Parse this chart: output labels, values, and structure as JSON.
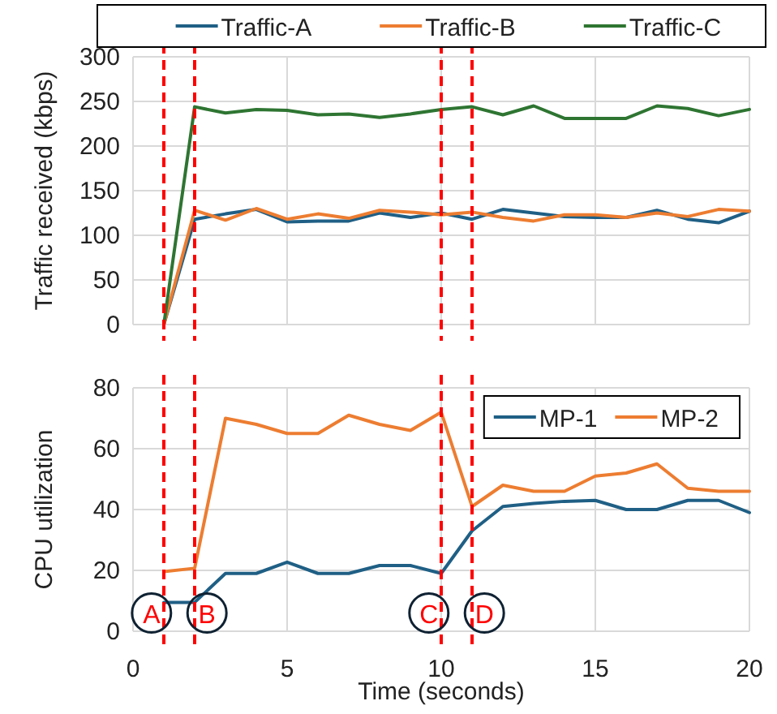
{
  "chart_data": [
    {
      "type": "line",
      "ylabel": "Traffic received (kbps)",
      "x": [
        1,
        2,
        3,
        4,
        5,
        6,
        7,
        8,
        9,
        10,
        11,
        12,
        13,
        14,
        15,
        16,
        17,
        18,
        19,
        20
      ],
      "xlim": [
        0,
        20
      ],
      "xticks": [
        0,
        5,
        10,
        15,
        20
      ],
      "ylim": [
        0,
        300
      ],
      "yticks": [
        0,
        50,
        100,
        150,
        200,
        250,
        300
      ],
      "grid": true,
      "legend": "top",
      "tick_labels": "y",
      "line_style": "solid",
      "marker": "none",
      "series": [
        {
          "name": "Traffic-A",
          "color": "#1f5f85",
          "values": [
            0,
            118,
            124,
            129,
            115,
            116,
            116,
            125,
            120,
            125,
            118,
            129,
            125,
            121,
            120,
            120,
            128,
            118,
            114,
            127
          ]
        },
        {
          "name": "Traffic-B",
          "color": "#ed7d31",
          "values": [
            0,
            128,
            117,
            130,
            118,
            124,
            119,
            128,
            126,
            123,
            126,
            120,
            116,
            123,
            123,
            120,
            125,
            121,
            129,
            127
          ]
        },
        {
          "name": "Traffic-C",
          "color": "#2e7532",
          "values": [
            0,
            244,
            237,
            241,
            240,
            235,
            236,
            232,
            236,
            241,
            244,
            235,
            245,
            231,
            231,
            231,
            245,
            242,
            234,
            241
          ]
        }
      ],
      "ref_lines": [
        {
          "axis": "x",
          "value": 1,
          "color": "#ff0000",
          "line_style": "dashed"
        },
        {
          "axis": "x",
          "value": 2,
          "color": "#ff0000",
          "line_style": "dashed"
        },
        {
          "axis": "x",
          "value": 10,
          "color": "#ff0000",
          "line_style": "dashed"
        },
        {
          "axis": "x",
          "value": 11,
          "color": "#ff0000",
          "line_style": "dashed"
        }
      ]
    },
    {
      "type": "line",
      "xlabel": "Time (seconds)",
      "ylabel": "CPU utilization",
      "x": [
        1,
        2,
        3,
        4,
        5,
        6,
        7,
        8,
        9,
        10,
        11,
        12,
        13,
        14,
        15,
        16,
        17,
        18,
        19,
        20
      ],
      "xlim": [
        0,
        20
      ],
      "xticks": [
        0,
        5,
        10,
        15,
        20
      ],
      "ylim": [
        0,
        80
      ],
      "yticks": [
        0,
        20,
        40,
        60,
        80
      ],
      "grid": true,
      "legend": "top right",
      "line_style": "solid",
      "marker": "none",
      "series": [
        {
          "name": "MP-1",
          "color": "#1f5f85",
          "values": [
            9.5,
            9.5,
            19,
            19,
            22.7,
            19,
            19,
            21.6,
            21.6,
            19,
            33,
            41,
            42,
            42.7,
            43,
            40,
            40,
            43,
            43,
            39
          ]
        },
        {
          "name": "MP-2",
          "color": "#ed7d31",
          "values": [
            19.6,
            20.7,
            70,
            68,
            65,
            65,
            71,
            68,
            66,
            72,
            41,
            48,
            46,
            46,
            51,
            52,
            55,
            47,
            46,
            46
          ]
        }
      ],
      "ref_lines": [
        {
          "axis": "x",
          "value": 1,
          "color": "#ff0000",
          "line_style": "dashed"
        },
        {
          "axis": "x",
          "value": 2,
          "color": "#ff0000",
          "line_style": "dashed"
        },
        {
          "axis": "x",
          "value": 10,
          "color": "#ff0000",
          "line_style": "dashed"
        },
        {
          "axis": "x",
          "value": 11,
          "color": "#ff0000",
          "line_style": "dashed"
        }
      ],
      "annotations": [
        {
          "text": "A",
          "x": 0.6,
          "y": 6
        },
        {
          "text": "B",
          "x": 2.4,
          "y": 6
        },
        {
          "text": "C",
          "x": 9.6,
          "y": 6
        },
        {
          "text": "D",
          "x": 11.4,
          "y": 6
        }
      ]
    }
  ]
}
